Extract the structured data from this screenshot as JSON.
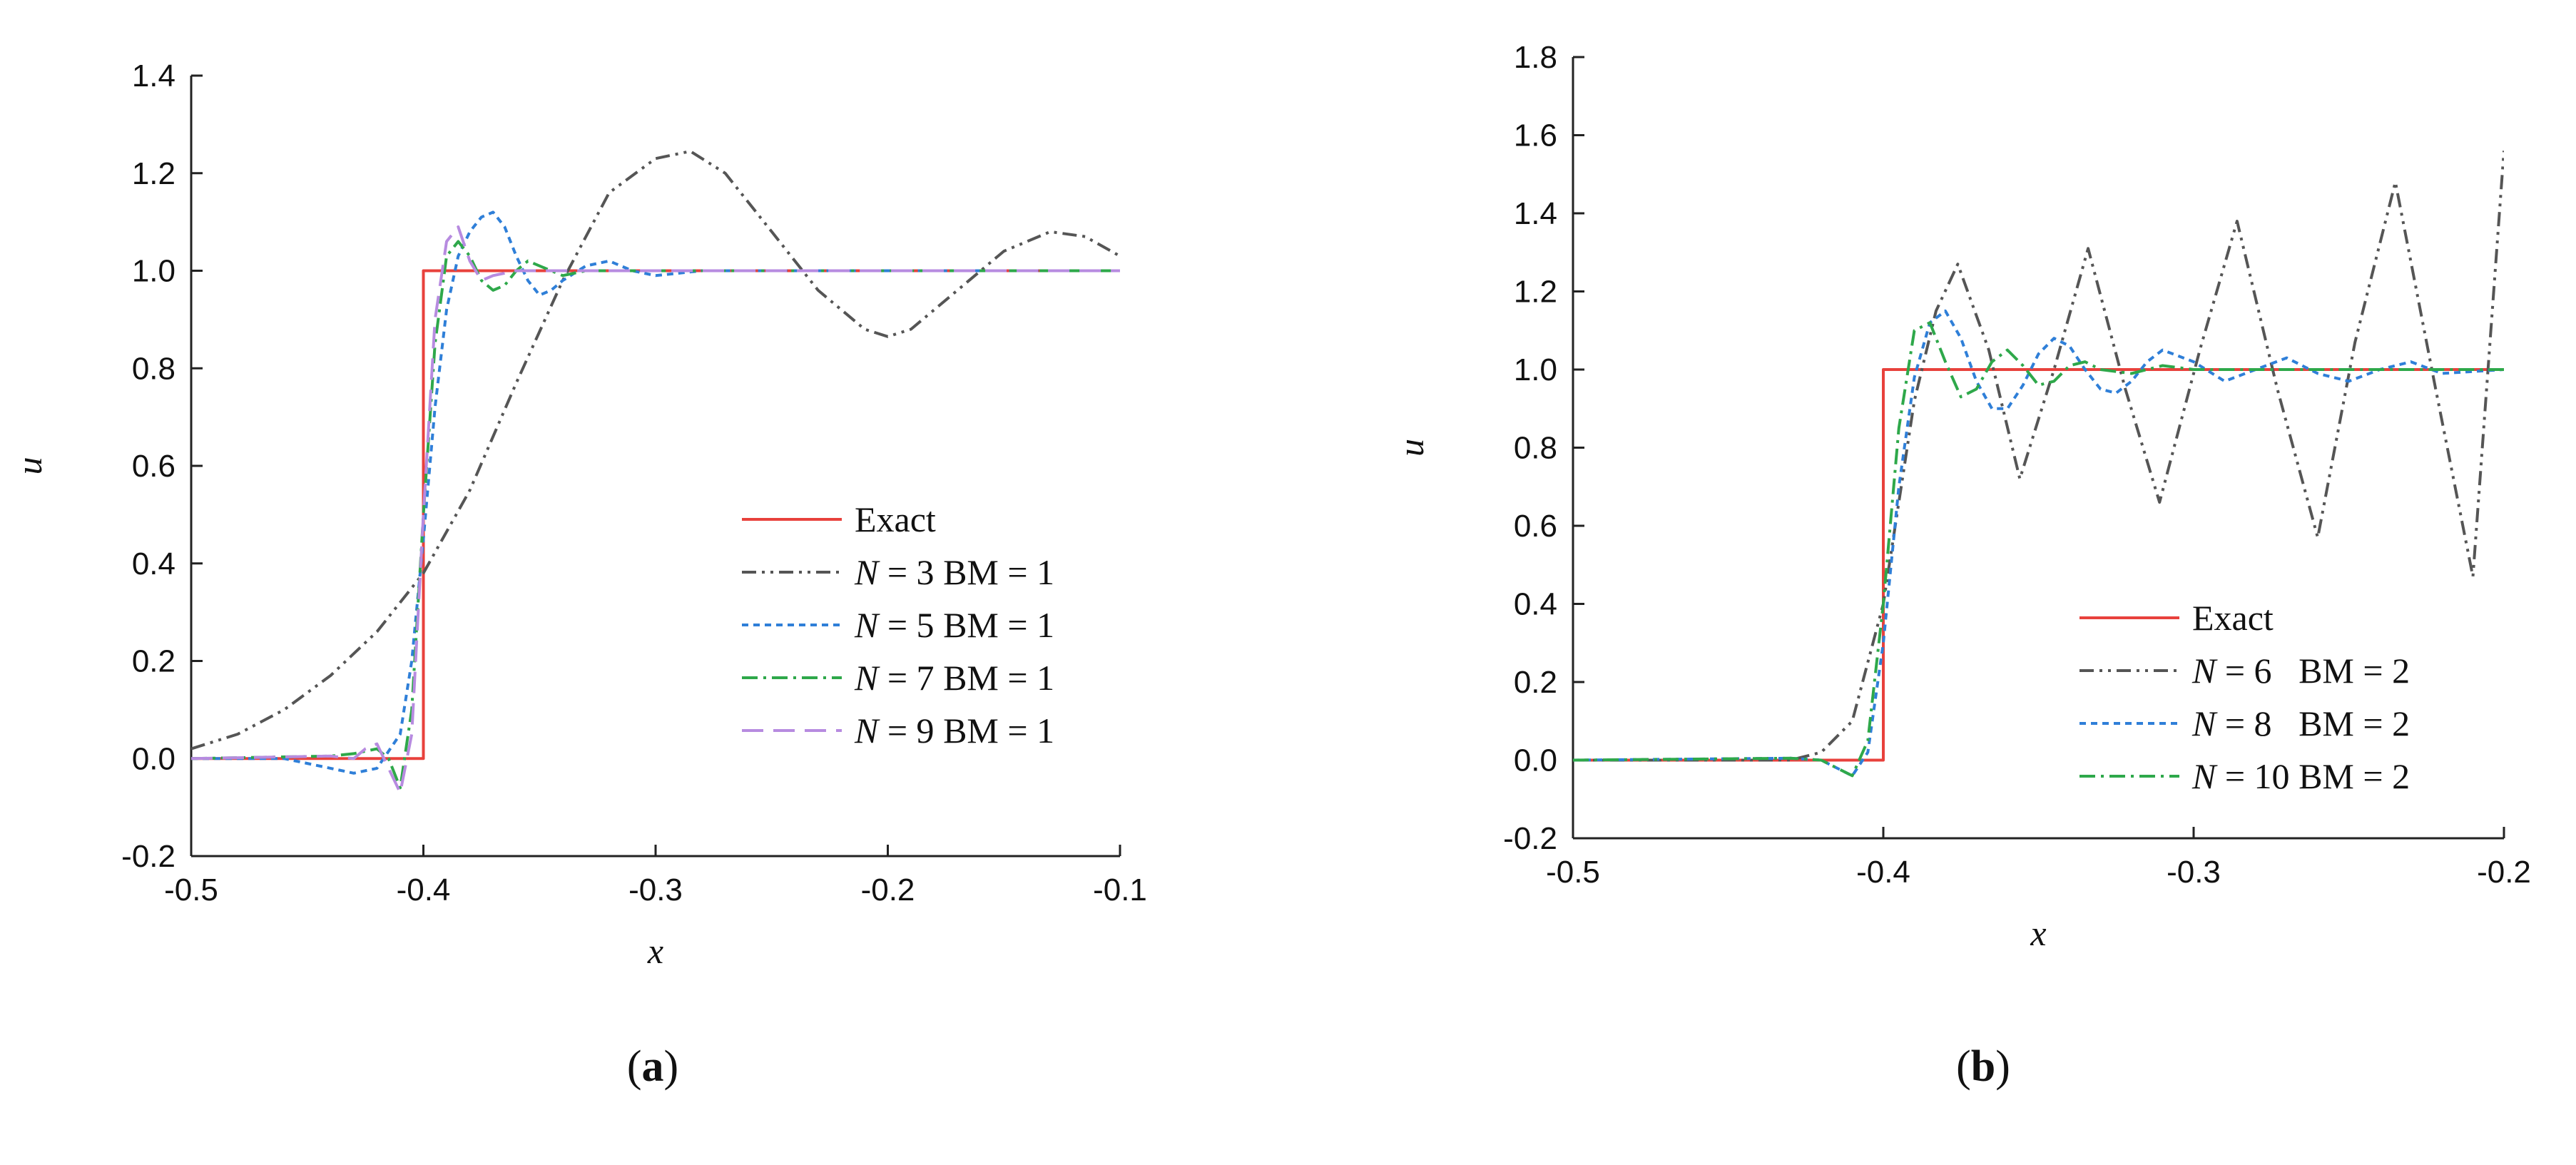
{
  "chart_data": [
    {
      "type": "line",
      "panel_label": "(a)",
      "xlabel": "x",
      "ylabel": "u",
      "xlim": [
        -0.5,
        -0.1
      ],
      "ylim": [
        -0.2,
        1.4
      ],
      "xticks": [
        "-0.5",
        "-0.4",
        "-0.3",
        "-0.2",
        "-0.1"
      ],
      "yticks": [
        "-0.2",
        "0.0",
        "0.2",
        "0.4",
        "0.6",
        "0.8",
        "1.0",
        "1.2",
        "1.4"
      ],
      "legend_position": "lower-right",
      "series": [
        {
          "name": "Exact",
          "legend_parts": [
            "",
            "",
            "Exact"
          ],
          "color": "#e8413c",
          "dash": "solid",
          "x": [
            -0.5,
            -0.4,
            -0.4,
            -0.1
          ],
          "y": [
            0,
            0,
            1,
            1
          ]
        },
        {
          "name": "N = 3 BM = 1",
          "legend_parts": [
            "N",
            " = 3 ",
            "BM = 1"
          ],
          "color": "#555555",
          "dash": "dash-dot-dot",
          "x": [
            -0.5,
            -0.48,
            -0.46,
            -0.44,
            -0.42,
            -0.4,
            -0.38,
            -0.36,
            -0.34,
            -0.32,
            -0.3,
            -0.285,
            -0.27,
            -0.25,
            -0.23,
            -0.21,
            -0.2,
            -0.19,
            -0.17,
            -0.15,
            -0.13,
            -0.115,
            -0.1
          ],
          "y": [
            0.02,
            0.05,
            0.1,
            0.17,
            0.26,
            0.38,
            0.55,
            0.77,
            0.98,
            1.16,
            1.23,
            1.245,
            1.2,
            1.08,
            0.96,
            0.88,
            0.865,
            0.88,
            0.96,
            1.04,
            1.08,
            1.07,
            1.03
          ]
        },
        {
          "name": "N = 5 BM = 1",
          "legend_parts": [
            "N",
            " = 5 ",
            "BM = 1"
          ],
          "color": "#2f7fd8",
          "dash": "dotted",
          "x": [
            -0.5,
            -0.46,
            -0.44,
            -0.43,
            -0.42,
            -0.41,
            -0.405,
            -0.4,
            -0.395,
            -0.39,
            -0.385,
            -0.38,
            -0.375,
            -0.37,
            -0.365,
            -0.36,
            -0.355,
            -0.35,
            -0.345,
            -0.34,
            -0.33,
            -0.32,
            -0.31,
            -0.3,
            -0.28,
            -0.1
          ],
          "y": [
            0,
            0.0,
            -0.02,
            -0.03,
            -0.02,
            0.05,
            0.2,
            0.45,
            0.72,
            0.92,
            1.03,
            1.08,
            1.11,
            1.12,
            1.09,
            1.03,
            0.98,
            0.95,
            0.96,
            0.98,
            1.01,
            1.02,
            1.0,
            0.99,
            1.0,
            1.0
          ]
        },
        {
          "name": "N = 7 BM = 1",
          "legend_parts": [
            "N",
            " = 7 ",
            "BM = 1"
          ],
          "color": "#2ea84a",
          "dash": "dash-dot",
          "x": [
            -0.5,
            -0.44,
            -0.43,
            -0.42,
            -0.415,
            -0.41,
            -0.405,
            -0.4,
            -0.395,
            -0.39,
            -0.385,
            -0.38,
            -0.375,
            -0.37,
            -0.365,
            -0.36,
            -0.355,
            -0.35,
            -0.34,
            -0.33,
            -0.3,
            -0.1
          ],
          "y": [
            0,
            0.005,
            0.01,
            0.02,
            0.0,
            -0.06,
            0.1,
            0.5,
            0.85,
            1.03,
            1.06,
            1.03,
            0.98,
            0.96,
            0.97,
            1.0,
            1.02,
            1.01,
            0.99,
            1.0,
            1.0,
            1.0
          ]
        },
        {
          "name": "N = 9 BM = 1",
          "legend_parts": [
            "N",
            " = 9 ",
            "BM = 1"
          ],
          "color": "#b78be0",
          "dash": "long-dash",
          "x": [
            -0.5,
            -0.44,
            -0.43,
            -0.425,
            -0.42,
            -0.415,
            -0.41,
            -0.405,
            -0.4,
            -0.395,
            -0.39,
            -0.385,
            -0.38,
            -0.375,
            -0.37,
            -0.36,
            -0.1
          ],
          "y": [
            0,
            0.005,
            0.0,
            0.02,
            0.03,
            -0.02,
            -0.07,
            0.05,
            0.5,
            0.9,
            1.06,
            1.09,
            1.02,
            0.98,
            0.99,
            1.0,
            1.0
          ]
        }
      ]
    },
    {
      "type": "line",
      "panel_label": "(b)",
      "xlabel": "x",
      "ylabel": "u",
      "xlim": [
        -0.5,
        -0.2
      ],
      "ylim": [
        -0.2,
        1.8
      ],
      "xticks": [
        "-0.5",
        "-0.4",
        "-0.3",
        "-0.2"
      ],
      "yticks": [
        "-0.2",
        "0.0",
        "0.2",
        "0.4",
        "0.6",
        "0.8",
        "1.0",
        "1.2",
        "1.4",
        "1.6",
        "1.8"
      ],
      "legend_position": "lower-right",
      "series": [
        {
          "name": "Exact",
          "legend_parts": [
            "",
            "",
            "Exact"
          ],
          "color": "#e8413c",
          "dash": "solid",
          "x": [
            -0.5,
            -0.4,
            -0.4,
            -0.2
          ],
          "y": [
            0,
            0,
            1,
            1
          ]
        },
        {
          "name": "N = 6 BM = 2",
          "legend_parts": [
            "N",
            " = 6   ",
            "BM = 2"
          ],
          "color": "#555555",
          "dash": "dash-dot-dot",
          "x": [
            -0.5,
            -0.43,
            -0.42,
            -0.41,
            -0.4,
            -0.39,
            -0.383,
            -0.376,
            -0.366,
            -0.356,
            -0.345,
            -0.334,
            -0.322,
            -0.311,
            -0.298,
            -0.286,
            -0.273,
            -0.26,
            -0.248,
            -0.235,
            -0.222,
            -0.21,
            -0.2
          ],
          "y": [
            0,
            0.0,
            0.02,
            0.1,
            0.4,
            0.92,
            1.15,
            1.27,
            1.05,
            0.72,
            1.0,
            1.31,
            0.95,
            0.66,
            1.05,
            1.38,
            0.95,
            0.57,
            1.07,
            1.48,
            0.95,
            0.47,
            1.56
          ]
        },
        {
          "name": "N = 8 BM = 2",
          "legend_parts": [
            "N",
            " = 8   ",
            "BM = 2"
          ],
          "color": "#2f7fd8",
          "dash": "dotted",
          "x": [
            -0.5,
            -0.43,
            -0.42,
            -0.415,
            -0.41,
            -0.405,
            -0.4,
            -0.395,
            -0.39,
            -0.385,
            -0.38,
            -0.375,
            -0.37,
            -0.365,
            -0.36,
            -0.355,
            -0.35,
            -0.345,
            -0.34,
            -0.335,
            -0.33,
            -0.325,
            -0.32,
            -0.315,
            -0.31,
            -0.3,
            -0.29,
            -0.28,
            -0.27,
            -0.26,
            -0.25,
            -0.24,
            -0.23,
            -0.22,
            -0.2
          ],
          "y": [
            0,
            0.005,
            0.0,
            -0.02,
            -0.04,
            0.02,
            0.3,
            0.7,
            0.98,
            1.12,
            1.15,
            1.08,
            0.97,
            0.9,
            0.9,
            0.96,
            1.04,
            1.08,
            1.06,
            1.0,
            0.95,
            0.94,
            0.97,
            1.02,
            1.05,
            1.02,
            0.97,
            1.0,
            1.03,
            0.99,
            0.97,
            1.0,
            1.02,
            0.99,
            1.0
          ]
        },
        {
          "name": "N = 10 BM = 2",
          "legend_parts": [
            "N",
            " = 10 ",
            "BM = 2"
          ],
          "color": "#2ea84a",
          "dash": "dash-dot",
          "x": [
            -0.5,
            -0.43,
            -0.42,
            -0.415,
            -0.41,
            -0.405,
            -0.4,
            -0.395,
            -0.39,
            -0.385,
            -0.38,
            -0.375,
            -0.37,
            -0.365,
            -0.36,
            -0.355,
            -0.35,
            -0.345,
            -0.34,
            -0.335,
            -0.33,
            -0.32,
            -0.31,
            -0.3,
            -0.28,
            -0.2
          ],
          "y": [
            0,
            0.005,
            0.0,
            -0.02,
            -0.04,
            0.05,
            0.4,
            0.85,
            1.1,
            1.12,
            1.02,
            0.93,
            0.95,
            1.02,
            1.05,
            1.01,
            0.96,
            0.97,
            1.01,
            1.02,
            1.0,
            0.99,
            1.01,
            1.0,
            1.0,
            1.0
          ]
        }
      ]
    }
  ]
}
